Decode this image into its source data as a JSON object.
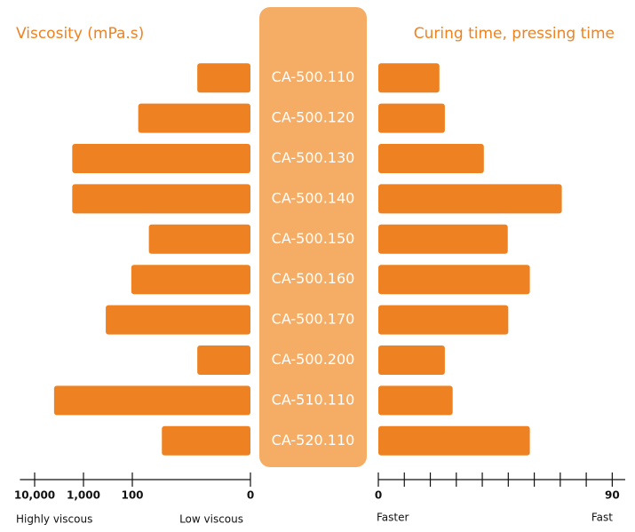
{
  "chart_data": [
    {
      "type": "bar",
      "orientation": "horizontal",
      "reversed": true,
      "x_scale": "symlog",
      "title": "Viscosity (mPa.s)",
      "color": "#ee8222",
      "categories": [
        "CA-500.110",
        "CA-500.120",
        "CA-500.130",
        "CA-500.140",
        "CA-500.150",
        "CA-500.160",
        "CA-500.170",
        "CA-500.200",
        "CA-510.110",
        "CA-520.110"
      ],
      "values": [
        45,
        95,
        1700,
        1700,
        86,
        105,
        350,
        45,
        4000,
        75
      ],
      "xlim": [
        0,
        20000
      ],
      "xticks": [
        0,
        100,
        {
          "value": 1000,
          "label": "1,000"
        },
        {
          "value": 10000,
          "label": "10,000"
        }
      ],
      "axis_end_labels": [
        "Highly viscous",
        "Low viscous"
      ]
    },
    {
      "type": "bar",
      "orientation": "horizontal",
      "x_scale": "linear",
      "title": "Curing time, pressing time",
      "color": "#ee8222",
      "values": [
        23.5,
        25.6,
        40.6,
        70.6,
        49.8,
        58.3,
        50,
        25.6,
        28.6,
        58.3
      ],
      "xlim": [
        0,
        95
      ],
      "xticks": [
        0,
        90
      ],
      "minor_xticks": [
        10,
        20,
        30,
        40,
        50,
        60,
        70,
        80
      ],
      "axis_end_labels": [
        "Faster",
        "Fast"
      ]
    }
  ]
}
